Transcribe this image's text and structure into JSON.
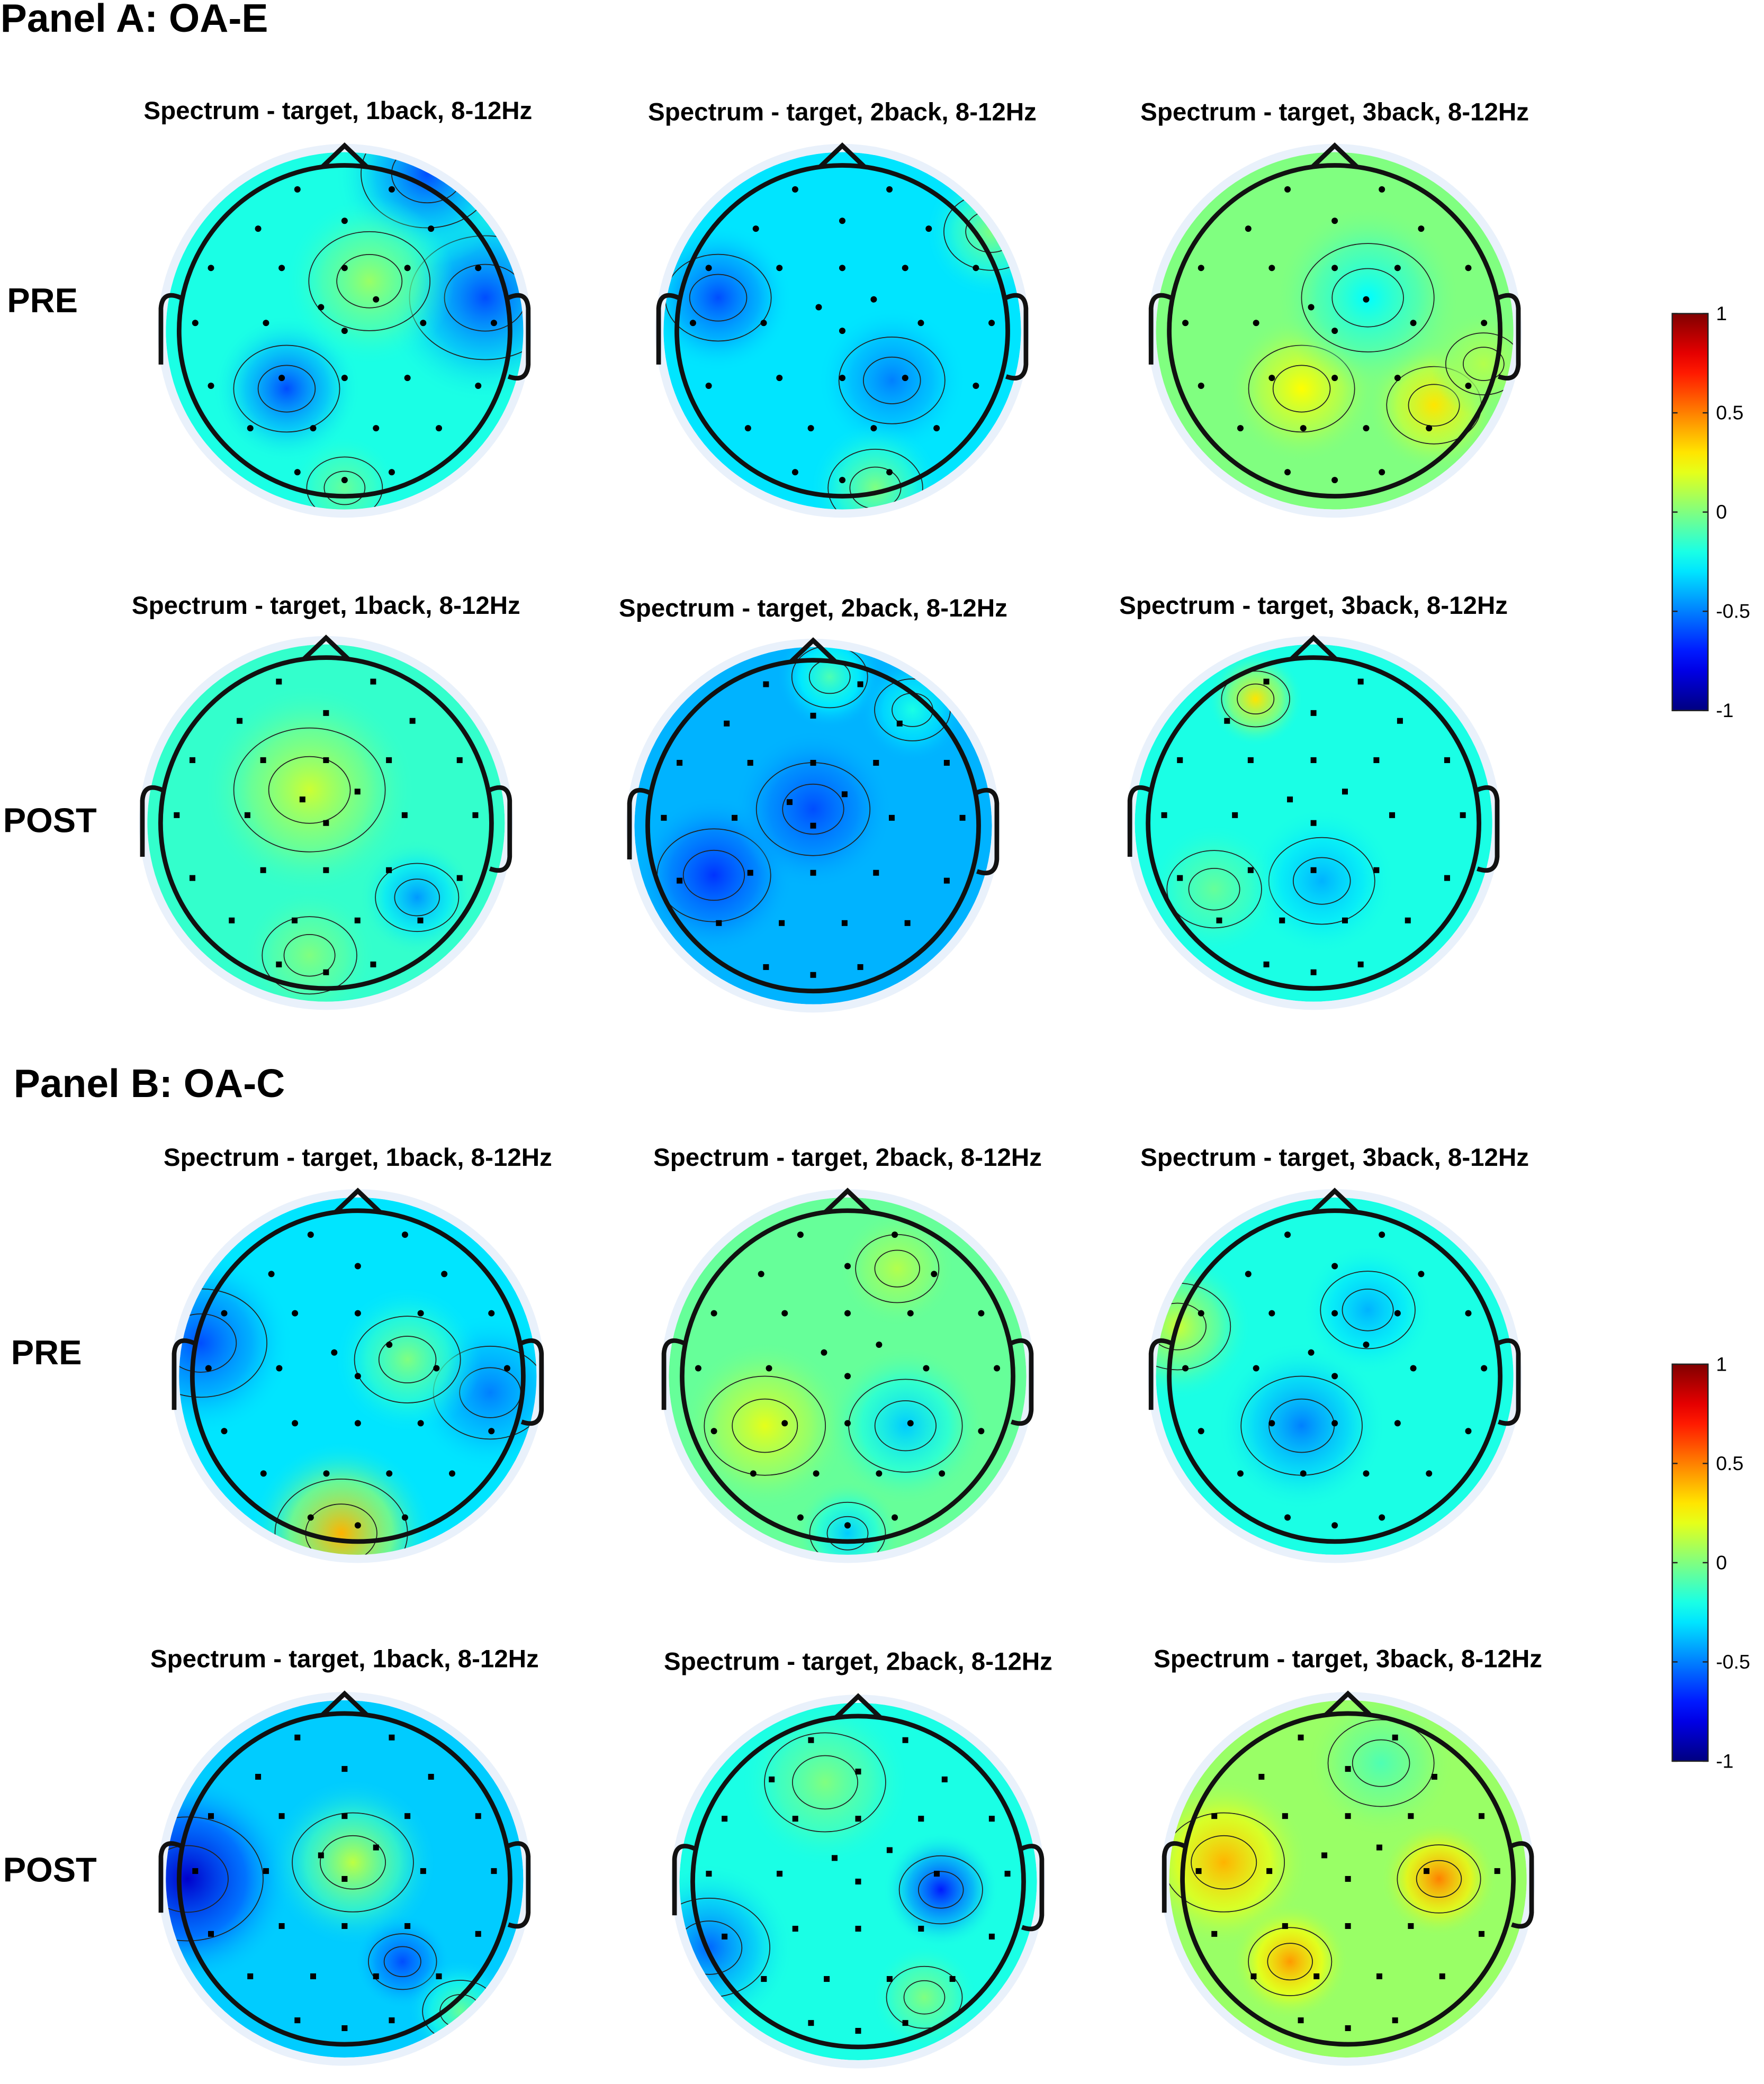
{
  "panels": [
    {
      "title": "Panel A: OA-E",
      "row_labels": [
        "PRE",
        "POST"
      ]
    },
    {
      "title": "Panel B: OA-C",
      "row_labels": [
        "PRE",
        "POST"
      ]
    }
  ],
  "chart_data": {
    "type": "heatmap",
    "subtype": "scalp topography",
    "colormap": "jet",
    "clim": [
      -1,
      1
    ],
    "colorbar_ticks": [
      "1",
      "0.5",
      "0",
      "-0.5",
      "-1"
    ],
    "plots": [
      {
        "panel": "Panel A: OA-E",
        "session": "PRE",
        "title": "Spectrum - target, 1back, 8-12Hz"
      },
      {
        "panel": "Panel A: OA-E",
        "session": "PRE",
        "title": "Spectrum - target, 2back, 8-12Hz"
      },
      {
        "panel": "Panel A: OA-E",
        "session": "PRE",
        "title": "Spectrum - target, 3back, 8-12Hz"
      },
      {
        "panel": "Panel A: OA-E",
        "session": "POST",
        "title": "Spectrum - target, 1back, 8-12Hz"
      },
      {
        "panel": "Panel A: OA-E",
        "session": "POST",
        "title": "Spectrum - target, 2back, 8-12Hz"
      },
      {
        "panel": "Panel A: OA-E",
        "session": "POST",
        "title": "Spectrum - target, 3back, 8-12Hz"
      },
      {
        "panel": "Panel B: OA-C",
        "session": "PRE",
        "title": "Spectrum - target, 1back, 8-12Hz"
      },
      {
        "panel": "Panel B: OA-C",
        "session": "PRE",
        "title": "Spectrum - target, 2back, 8-12Hz"
      },
      {
        "panel": "Panel B: OA-C",
        "session": "PRE",
        "title": "Spectrum - target, 3back, 8-12Hz"
      },
      {
        "panel": "Panel B: OA-C",
        "session": "POST",
        "title": "Spectrum - target, 1back, 8-12Hz"
      },
      {
        "panel": "Panel B: OA-C",
        "session": "POST",
        "title": "Spectrum - target, 2back, 8-12Hz"
      },
      {
        "panel": "Panel B: OA-C",
        "session": "POST",
        "title": "Spectrum - target, 3back, 8-12Hz"
      }
    ]
  }
}
